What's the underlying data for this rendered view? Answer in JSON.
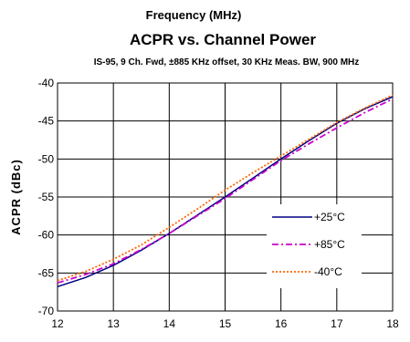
{
  "chart_data": {
    "type": "line",
    "top_label": "Frequency (MHz)",
    "title": "ACPR vs. Channel Power",
    "subtitle": "IS-95, 9 Ch. Fwd, ±885 KHz offset, 30 KHz Meas. BW, 900 MHz",
    "xlabel": "",
    "ylabel": "ACPR (dBc)",
    "xlim": [
      12,
      18
    ],
    "ylim": [
      -70,
      -40
    ],
    "x_ticks": [
      12,
      13,
      14,
      15,
      16,
      17,
      18
    ],
    "y_ticks": [
      -40,
      -45,
      -50,
      -55,
      -60,
      -65,
      -70
    ],
    "grid": true,
    "legend": "center-right",
    "x": [
      12,
      12.5,
      13,
      13.5,
      14,
      14.5,
      15,
      15.5,
      16,
      16.5,
      17,
      17.5,
      18
    ],
    "series": [
      {
        "name": "+25°C",
        "color": "#000080",
        "dash": "solid",
        "values": [
          -66.8,
          -65.6,
          -64.0,
          -62.0,
          -59.8,
          -57.4,
          -55.0,
          -52.5,
          -50.0,
          -47.6,
          -45.3,
          -43.4,
          -41.8
        ]
      },
      {
        "name": "+85°C",
        "color": "#cc00cc",
        "dash": "dashdot",
        "values": [
          -66.3,
          -65.2,
          -63.8,
          -61.9,
          -59.8,
          -57.5,
          -55.2,
          -52.7,
          -50.2,
          -48.0,
          -45.9,
          -43.9,
          -42.1
        ]
      },
      {
        "name": "-40°C",
        "color": "#ff6600",
        "dash": "dot",
        "values": [
          -66.0,
          -64.8,
          -63.2,
          -61.3,
          -59.0,
          -56.6,
          -54.1,
          -51.8,
          -49.6,
          -47.4,
          -45.2,
          -43.3,
          -41.6
        ]
      }
    ]
  }
}
